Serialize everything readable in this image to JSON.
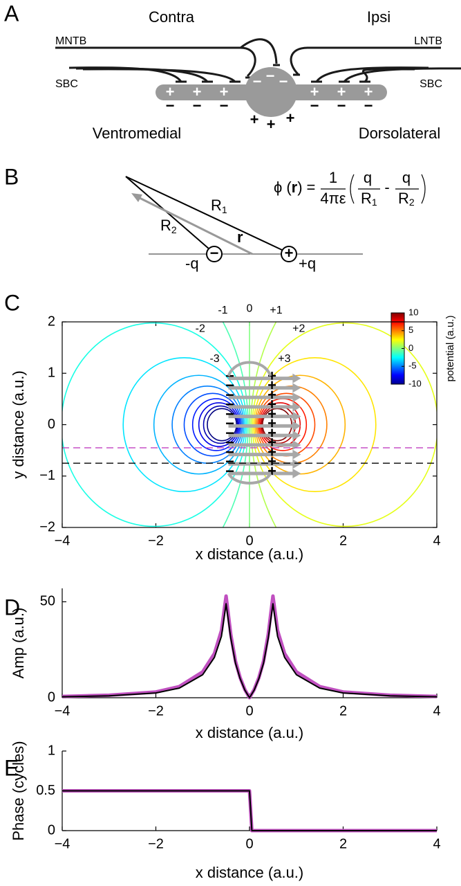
{
  "symbols": {
    "plus": "+",
    "minus": "−"
  },
  "panel_a": {
    "letter": "A",
    "contra": "Contra",
    "ipsi": "Ipsi",
    "left_input": "MNTB",
    "right_input": "LNTB",
    "left_sbc": "SBC",
    "right_sbc": "SBC",
    "left_region": "Ventromedial",
    "right_region": "Dorsolateral"
  },
  "panel_b": {
    "letter": "B",
    "r1": "R",
    "r1_sub": "1",
    "r2": "R",
    "r2_sub": "2",
    "r": "r",
    "neg_charge": "-q",
    "pos_charge": "+q",
    "equation": {
      "phi": "ϕ",
      "open": "(",
      "arg": "r",
      "close": ")",
      "equals": "=",
      "one": "1",
      "denom": "4πε",
      "q1": "q",
      "R1": "R",
      "sub1": "1",
      "minus": "-",
      "q2": "q",
      "R2": "R",
      "sub2": "2"
    }
  },
  "chart_data": [
    {
      "type": "contour",
      "letter": "C",
      "xlabel": "x distance (a.u.)",
      "ylabel": "y distance (a.u.)",
      "xlim": [
        -4,
        4
      ],
      "ylim": [
        -2,
        2
      ],
      "xticks": [
        {
          "value": -4,
          "label": "−4"
        },
        {
          "value": -2,
          "label": "−2"
        },
        0,
        2,
        4
      ],
      "yticks": [
        {
          "value": -2,
          "label": "−2"
        },
        {
          "value": -1,
          "label": "−1"
        },
        0,
        1,
        2
      ],
      "levels": [
        -10,
        -9,
        -8,
        -7,
        -6,
        -5,
        -4,
        -3,
        -2,
        -1,
        0,
        1,
        2,
        3,
        4,
        5,
        6,
        7,
        8,
        9,
        10
      ],
      "level_labels": [
        null,
        null,
        null,
        null,
        null,
        null,
        null,
        "-3",
        "-2",
        "-1",
        "0",
        "+1",
        "+2",
        "+3",
        null,
        null,
        null,
        null,
        null,
        null,
        null
      ],
      "colorbar_label": "potential (a.u.)",
      "clim": [
        -10,
        10
      ],
      "cticks": [
        -10,
        -5,
        0,
        5,
        10
      ],
      "lines": [
        {
          "y": -0.45,
          "color": "#c040c0"
        },
        {
          "y": -0.75,
          "color": "#000000"
        }
      ]
    },
    {
      "type": "line",
      "letter": "D",
      "xlabel": "x distance (a.u.)",
      "ylabel": "Amp (a.u.)",
      "xlim": [
        -4,
        4
      ],
      "ylim": [
        0,
        57
      ],
      "xticks": [
        {
          "value": -4,
          "label": "−4"
        },
        {
          "value": -2,
          "label": "−2"
        },
        0,
        2,
        4
      ],
      "yticks": [
        0,
        50
      ],
      "x": [
        -4,
        -3,
        -2,
        -1.5,
        -1,
        -0.75,
        -0.6,
        -0.5,
        -0.4,
        -0.3,
        -0.2,
        -0.1,
        0,
        0.1,
        0.2,
        0.3,
        0.4,
        0.5,
        0.6,
        0.75,
        1,
        1.5,
        2,
        3,
        4
      ],
      "series": [
        {
          "color": "#c050c0",
          "values": [
            0.7,
            1.3,
            3,
            5.8,
            13.5,
            23,
            35,
            53,
            33,
            19,
            10.5,
            4.3,
            0,
            4.3,
            10.5,
            19,
            33,
            53,
            35,
            23,
            13.5,
            5.8,
            3,
            1.3,
            0.7
          ]
        },
        {
          "color": "#000000",
          "values": [
            0.5,
            1,
            2.5,
            5,
            12,
            21,
            32,
            49,
            31,
            18,
            10,
            4,
            0,
            4,
            10,
            18,
            31,
            49,
            32,
            21,
            12,
            5,
            2.5,
            1,
            0.5
          ]
        }
      ]
    },
    {
      "type": "line",
      "letter": "E",
      "xlabel": "x distance (a.u.)",
      "ylabel": "Phase (cycles)",
      "xlim": [
        -4,
        4
      ],
      "ylim": [
        0,
        1
      ],
      "xticks": [
        {
          "value": -4,
          "label": "−4"
        },
        {
          "value": -2,
          "label": "−2"
        },
        0,
        2,
        4
      ],
      "yticks": [
        0,
        0.5,
        1
      ],
      "x": [
        -4,
        0,
        0.05,
        4
      ],
      "series": [
        {
          "color": "#c050c0",
          "values": [
            0.5,
            0.5,
            0,
            0
          ]
        },
        {
          "color": "#000000",
          "values": [
            0.5,
            0.5,
            0,
            0
          ]
        }
      ]
    }
  ]
}
